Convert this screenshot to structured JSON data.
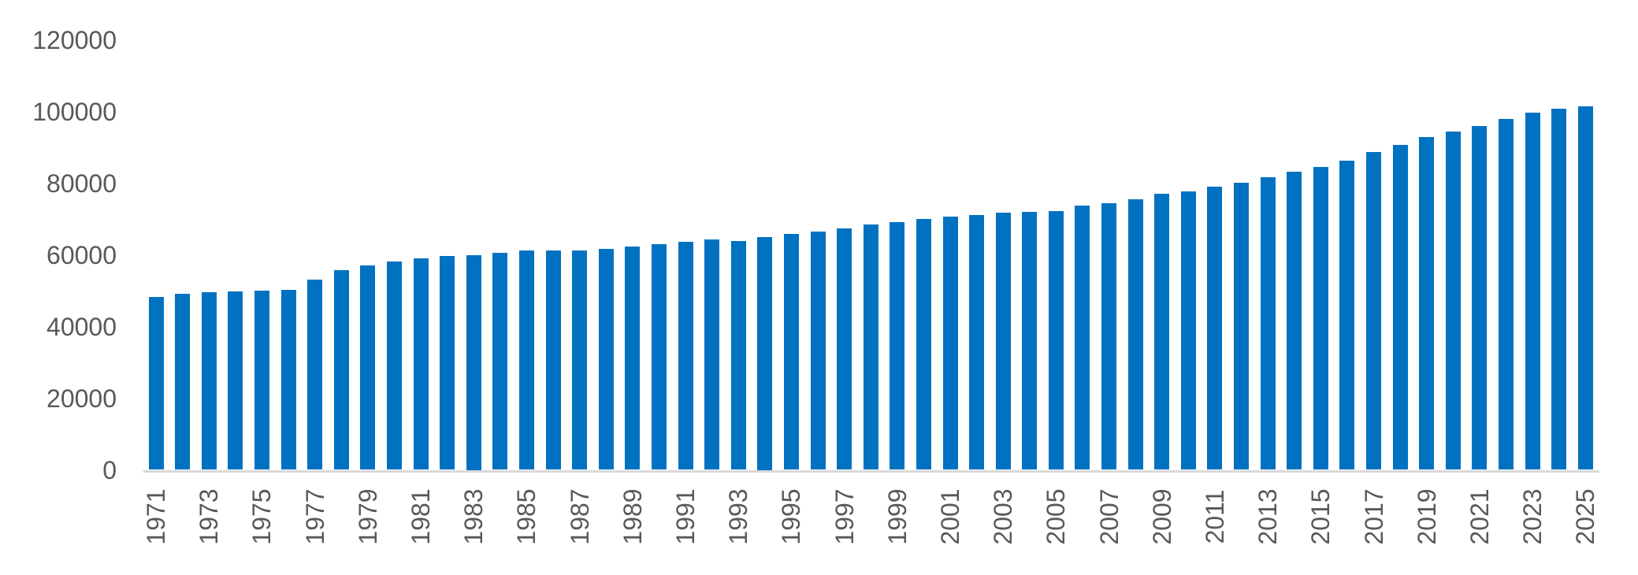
{
  "chart_data": {
    "type": "bar",
    "title": "",
    "xlabel": "",
    "ylabel": "",
    "categories": [
      "1971",
      "1972",
      "1973",
      "1974",
      "1975",
      "1976",
      "1977",
      "1978",
      "1979",
      "1980",
      "1981",
      "1982",
      "1983",
      "1984",
      "1985",
      "1986",
      "1987",
      "1988",
      "1989",
      "1990",
      "1991",
      "1992",
      "1993",
      "1994",
      "1995",
      "1996",
      "1997",
      "1998",
      "1999",
      "2000",
      "2001",
      "2002",
      "2003",
      "2004",
      "2005",
      "2006",
      "2007",
      "2008",
      "2009",
      "2010",
      "2011",
      "2012",
      "2013",
      "2014",
      "2015",
      "2016",
      "2017",
      "2018",
      "2019",
      "2020",
      "2021",
      "2022",
      "2023",
      "2024",
      "2025"
    ],
    "values": [
      48200,
      49200,
      49500,
      49800,
      49900,
      50300,
      53000,
      55700,
      57000,
      58200,
      59000,
      59600,
      60000,
      60500,
      61300,
      61300,
      61300,
      61600,
      62300,
      63000,
      63700,
      64300,
      63900,
      65000,
      65800,
      66400,
      67400,
      68400,
      69100,
      70100,
      70700,
      71200,
      71800,
      72000,
      72300,
      73700,
      74300,
      75400,
      77100,
      77700,
      79000,
      80100,
      81600,
      83100,
      84400,
      86300,
      88600,
      90600,
      92900,
      94500,
      96000,
      98000,
      99700,
      100800,
      101400
    ],
    "y_axis_tick_labels": [
      "0",
      "20000",
      "40000",
      "60000",
      "80000",
      "100000",
      "120000"
    ],
    "y_axis_tick_values": [
      0,
      20000,
      40000,
      60000,
      80000,
      100000,
      120000
    ],
    "x_axis_tick_labels": [
      "1971",
      "1973",
      "1975",
      "1977",
      "1979",
      "1981",
      "1983",
      "1985",
      "1987",
      "1989",
      "1991",
      "1993",
      "1995",
      "1997",
      "1999",
      "2001",
      "2003",
      "2005",
      "2007",
      "2009",
      "2011",
      "2013",
      "2015",
      "2017",
      "2019",
      "2021",
      "2023",
      "2025"
    ],
    "x_label_every_n_years": 2,
    "ylim": [
      0,
      120000
    ],
    "grid": "off",
    "legend": "none",
    "bar_color": "#0072C1",
    "axis_label_color": "#595959",
    "axis_line_color": "#D9D9D9",
    "background_color": "#FFFFFF"
  }
}
